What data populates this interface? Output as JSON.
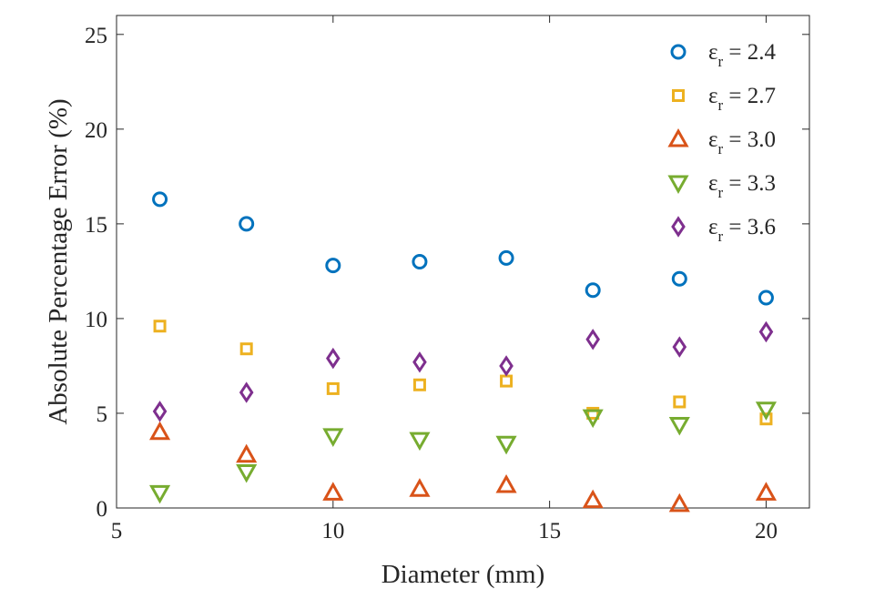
{
  "chart_data": {
    "type": "scatter",
    "title": "",
    "xlabel": "Diameter (mm)",
    "ylabel": "Absolute Percentage Error (%)",
    "xlim": [
      5,
      21
    ],
    "ylim": [
      0,
      26
    ],
    "xticks": [
      5,
      10,
      15,
      20
    ],
    "yticks": [
      0,
      5,
      10,
      15,
      20,
      25
    ],
    "legend_position": "top-right",
    "x": [
      6,
      8,
      10,
      12,
      14,
      16,
      18,
      20
    ],
    "series": [
      {
        "symbol": "ε",
        "subscript": "r",
        "value_text": " = 2.4",
        "marker": "circle",
        "color": "#0072BD",
        "values": [
          16.3,
          15.0,
          12.8,
          13.0,
          13.2,
          11.5,
          12.1,
          11.1
        ]
      },
      {
        "symbol": "ε",
        "subscript": "r",
        "value_text": " = 2.7",
        "marker": "square",
        "color": "#EDB120",
        "values": [
          9.6,
          8.4,
          6.3,
          6.5,
          6.7,
          5.0,
          5.6,
          4.7
        ]
      },
      {
        "symbol": "ε",
        "subscript": "r",
        "value_text": " = 3.0",
        "marker": "triangle-up",
        "color": "#D95319",
        "values": [
          4.0,
          2.8,
          0.8,
          1.0,
          1.2,
          0.4,
          0.2,
          0.8
        ]
      },
      {
        "symbol": "ε",
        "subscript": "r",
        "value_text": " = 3.3",
        "marker": "triangle-down",
        "color": "#77AC30",
        "values": [
          0.8,
          1.9,
          3.8,
          3.6,
          3.4,
          4.8,
          4.4,
          5.2
        ]
      },
      {
        "symbol": "ε",
        "subscript": "r",
        "value_text": " = 3.6",
        "marker": "diamond",
        "color": "#7E2F8E",
        "values": [
          5.1,
          6.1,
          7.9,
          7.7,
          7.5,
          8.9,
          8.5,
          9.3
        ]
      }
    ]
  }
}
